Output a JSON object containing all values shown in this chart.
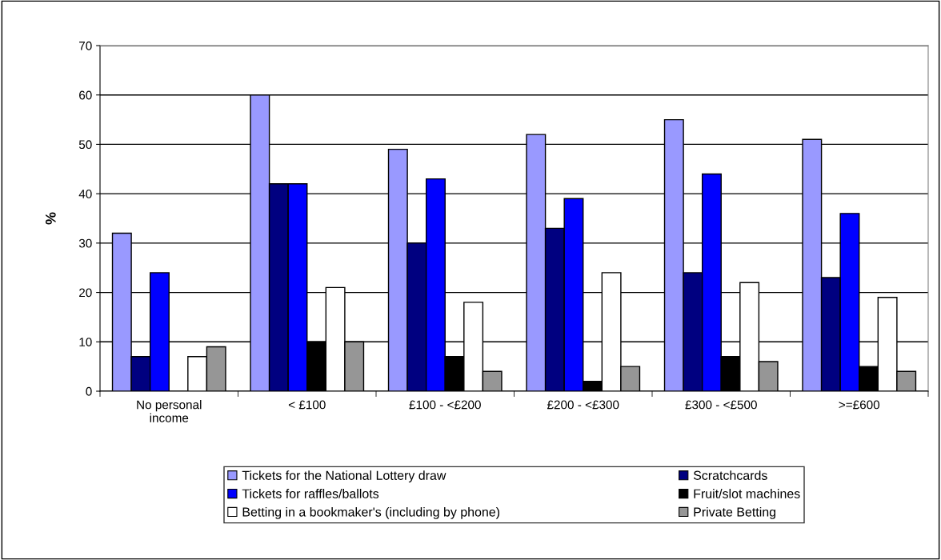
{
  "chart_data": {
    "type": "bar",
    "ylabel": "%",
    "categories": [
      "No personal\nincome",
      "< £100",
      "£100 - <£200",
      "£200 - <£300",
      "£300 - <£500",
      ">=£600"
    ],
    "series": [
      {
        "name": "Tickets for the National Lottery draw",
        "color": "#9999ff",
        "values": [
          32,
          60,
          49,
          52,
          55,
          51
        ]
      },
      {
        "name": "Scratchcards",
        "color": "#000080",
        "values": [
          7,
          42,
          30,
          33,
          24,
          23
        ]
      },
      {
        "name": "Tickets for raffles/ballots",
        "color": "#0000ff",
        "values": [
          24,
          42,
          43,
          39,
          44,
          36
        ]
      },
      {
        "name": "Fruit/slot machines",
        "color": "#000000",
        "values": [
          null,
          10,
          7,
          2,
          7,
          5
        ]
      },
      {
        "name": "Betting in a bookmaker's (including by phone)",
        "color": "#ffffff",
        "values": [
          7,
          21,
          18,
          24,
          22,
          19
        ]
      },
      {
        "name": "Private Betting",
        "color": "#969696",
        "values": [
          9,
          10,
          4,
          5,
          6,
          4
        ]
      }
    ],
    "ylim": [
      0,
      70
    ],
    "yticks": [
      0,
      10,
      20,
      30,
      40,
      50,
      60,
      70
    ],
    "grid": "y",
    "legend": "bottom"
  }
}
